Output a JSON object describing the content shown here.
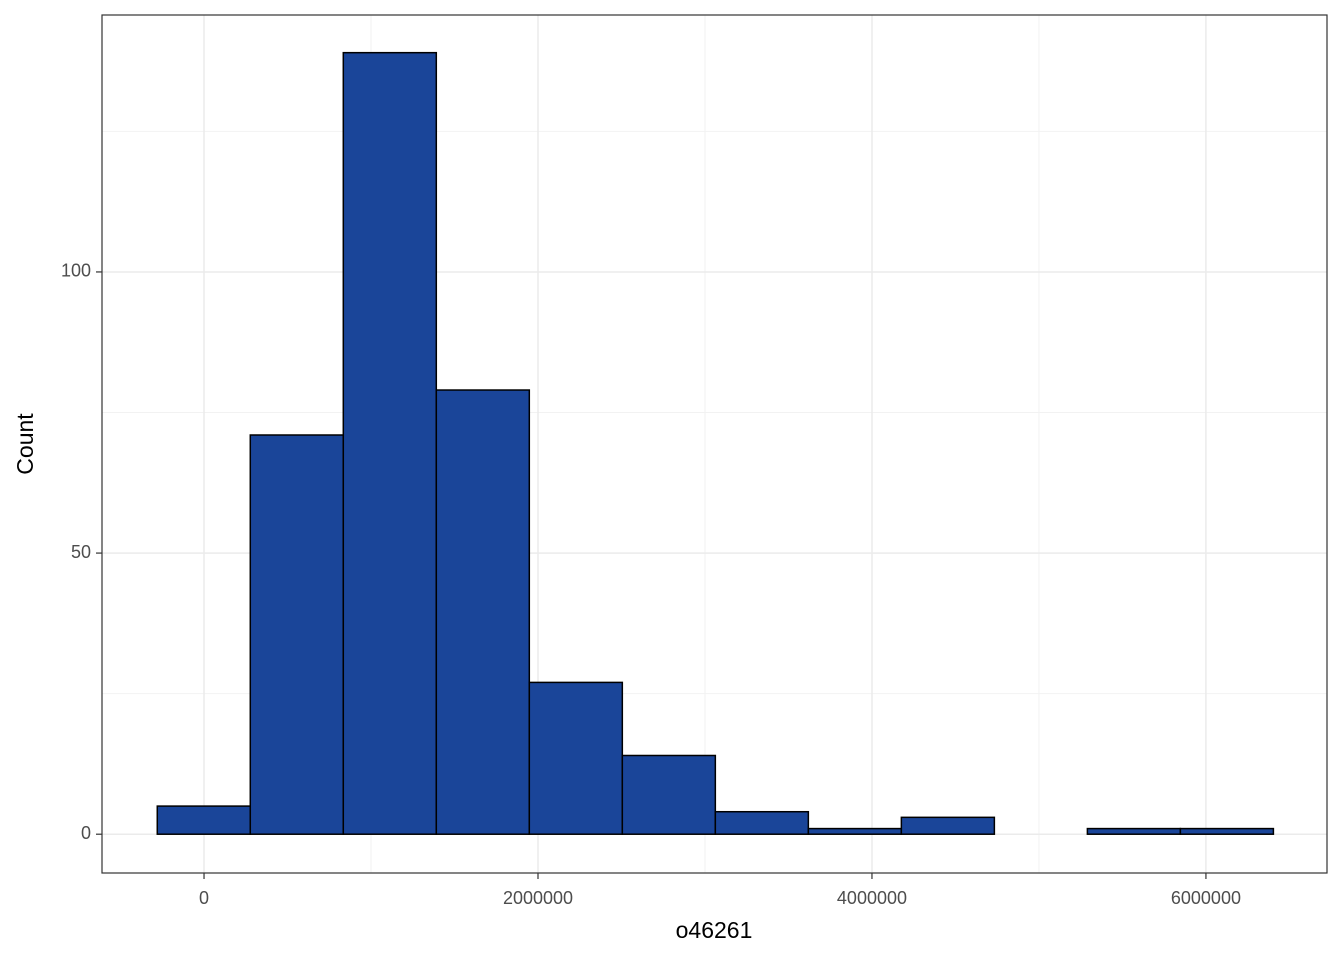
{
  "chart_data": {
    "type": "histogram",
    "x_label": "o46261",
    "y_label": "Count",
    "bins": [
      -280000,
      277000,
      834000,
      1391000,
      1948000,
      2505000,
      3062000,
      3619000,
      4176000,
      4733000,
      5290000,
      5847000,
      6404000
    ],
    "values": [
      5,
      71,
      139,
      79,
      27,
      14,
      4,
      1,
      3,
      0,
      1,
      1
    ],
    "color": "#1a4599",
    "edge_color": "#000000",
    "xlim": [
      -611000,
      6725000
    ],
    "ylim": [
      -6.9,
      145.7
    ],
    "xticks": [
      0,
      2000000,
      4000000,
      6000000
    ],
    "yticks": [
      0,
      50,
      100
    ],
    "xminorticks": [
      1000000,
      3000000,
      5000000
    ],
    "yminorticks": [
      25,
      75,
      125
    ],
    "grid": true
  }
}
